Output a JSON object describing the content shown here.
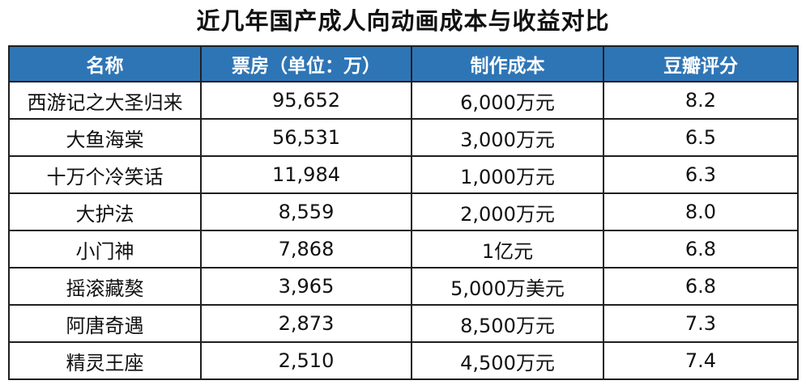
{
  "chart_data": {
    "type": "table",
    "title": "近几年国产成人向动画成本与收益对比",
    "columns": [
      "名称",
      "票房（单位：万）",
      "制作成本",
      "豆瓣评分"
    ],
    "rows": [
      [
        "西游记之大圣归来",
        "95,652",
        "6,000万元",
        "8.2"
      ],
      [
        "大鱼海棠",
        "56,531",
        "3,000万元",
        "6.5"
      ],
      [
        "十万个冷笑话",
        "11,984",
        "1,000万元",
        "6.3"
      ],
      [
        "大护法",
        "8,559",
        "2,000万元",
        "8.0"
      ],
      [
        "小门神",
        "7,868",
        "1亿元",
        "6.8"
      ],
      [
        "摇滚藏獒",
        "3,965",
        "5,000万美元",
        "6.8"
      ],
      [
        "阿唐奇遇",
        "2,873",
        "8,500万元",
        "7.3"
      ],
      [
        "精灵王座",
        "2,510",
        "4,500万元",
        "7.4"
      ]
    ],
    "header_color": "#2e75b6",
    "header_text_color": "#ffffff",
    "border_color": "#1f1f1f"
  }
}
